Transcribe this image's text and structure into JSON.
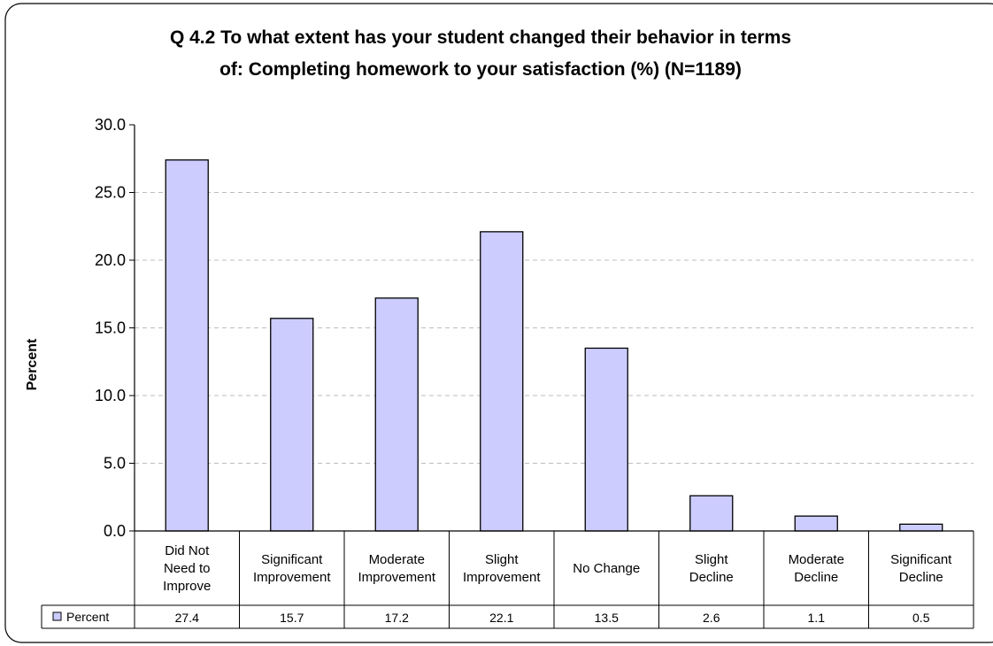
{
  "chart_data": {
    "type": "bar",
    "title_lines": [
      "Q 4.2 To what extent has your student changed their behavior in terms",
      "of: Completing homework to your satisfaction (%) (N=1189)"
    ],
    "ylabel": "Percent",
    "xlabel": "",
    "ylim": [
      0,
      30
    ],
    "yticks": [
      "0.0",
      "5.0",
      "10.0",
      "15.0",
      "20.0",
      "25.0",
      "30.0"
    ],
    "grid": "horizontal dashed",
    "categories": [
      [
        "Did Not",
        "Need to",
        "Improve"
      ],
      [
        "Significant",
        "Improvement"
      ],
      [
        "Moderate",
        "Improvement"
      ],
      [
        "Slight",
        "Improvement"
      ],
      [
        "No Change"
      ],
      [
        "Slight",
        "Decline"
      ],
      [
        "Moderate",
        "Decline"
      ],
      [
        "Significant",
        "Decline"
      ]
    ],
    "series": [
      {
        "name": "Percent",
        "values": [
          27.4,
          15.7,
          17.2,
          22.1,
          13.5,
          2.6,
          1.1,
          0.5
        ],
        "value_labels": [
          "27.4",
          "15.7",
          "17.2",
          "22.1",
          "13.5",
          "2.6",
          "1.1",
          "0.5"
        ],
        "color": "#ccccff"
      }
    ],
    "legend": "data-table-row"
  }
}
